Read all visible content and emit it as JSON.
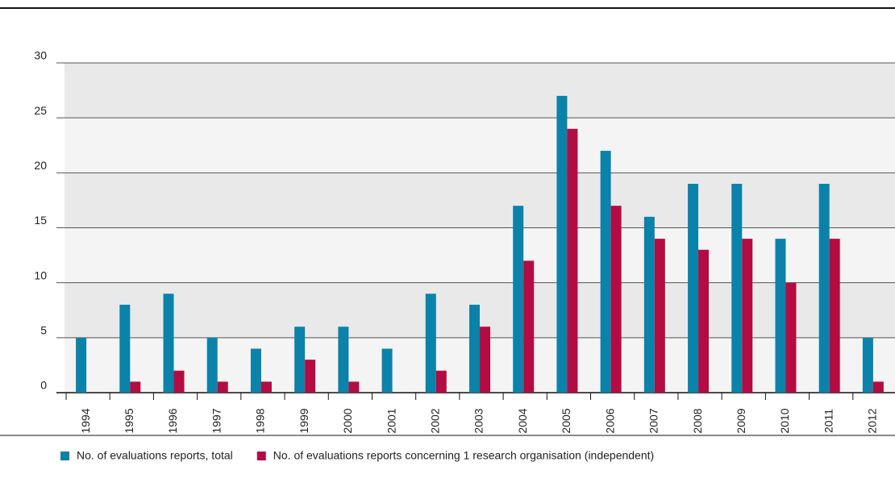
{
  "chart_data": {
    "type": "bar",
    "categories": [
      "1994",
      "1995",
      "1996",
      "1997",
      "1998",
      "1999",
      "2000",
      "2001",
      "2002",
      "2003",
      "2004",
      "2005",
      "2006",
      "2007",
      "2008",
      "2009",
      "2010",
      "2011",
      "2012"
    ],
    "series": [
      {
        "name": "No. of evaluations reports, total",
        "color": "#0b82a9",
        "values": [
          5,
          8,
          9,
          5,
          4,
          6,
          6,
          4,
          9,
          8,
          17,
          27,
          22,
          16,
          19,
          19,
          14,
          19,
          5
        ]
      },
      {
        "name": "No. of evaluations reports concerning 1 research organisation (independent)",
        "color": "#b30c43",
        "values": [
          0,
          1,
          2,
          1,
          1,
          3,
          1,
          0,
          2,
          6,
          12,
          24,
          17,
          14,
          13,
          14,
          10,
          14,
          1
        ]
      }
    ],
    "ylim": [
      0,
      30
    ],
    "yticks": [
      0,
      5,
      10,
      15,
      20,
      25,
      30
    ],
    "grid": true
  }
}
